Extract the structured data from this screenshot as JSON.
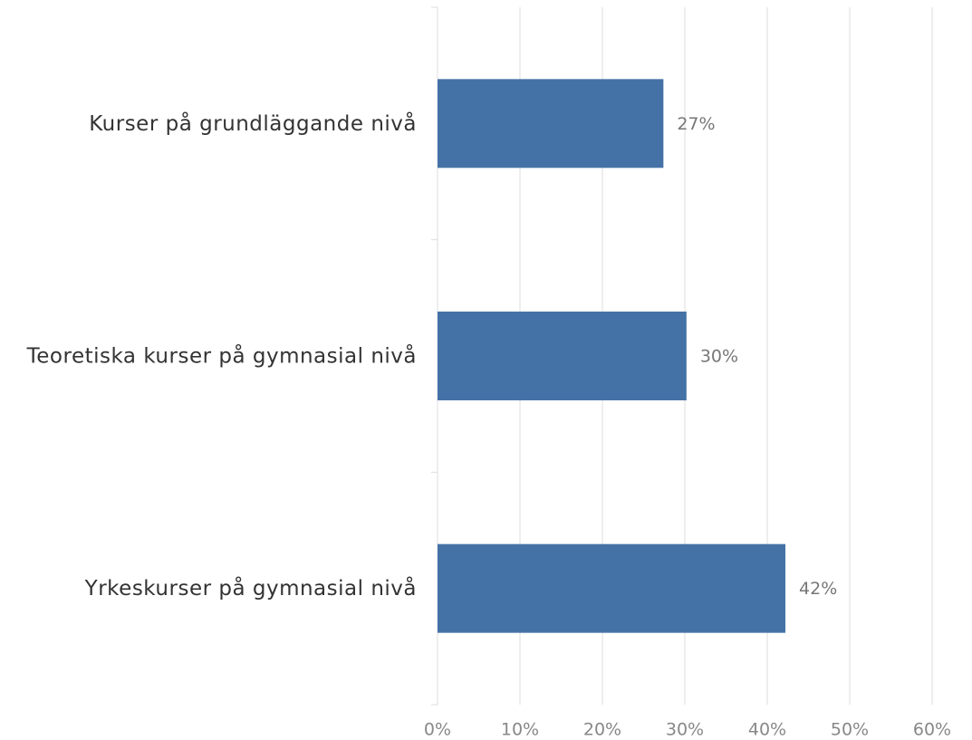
{
  "chart_data": {
    "type": "bar",
    "orientation": "horizontal",
    "categories": [
      "Kurser på grundläggande nivå",
      "Teoretiska kurser på gymnasial nivå",
      "Yrkeskurser på gymnasial nivå"
    ],
    "values": [
      27.4,
      30.2,
      42.2
    ],
    "value_labels": [
      "27%",
      "30%",
      "42%"
    ],
    "color": "#4472a6",
    "xlim": [
      0,
      60
    ],
    "xticks": [
      {
        "value": 0,
        "label": "0%"
      },
      {
        "value": 10,
        "label": "10%"
      },
      {
        "value": 20,
        "label": "20%"
      },
      {
        "value": 30,
        "label": "30%"
      },
      {
        "value": 40,
        "label": "40%"
      },
      {
        "value": 50,
        "label": "50%"
      },
      {
        "value": 60,
        "label": "60%"
      }
    ],
    "grid": true
  }
}
